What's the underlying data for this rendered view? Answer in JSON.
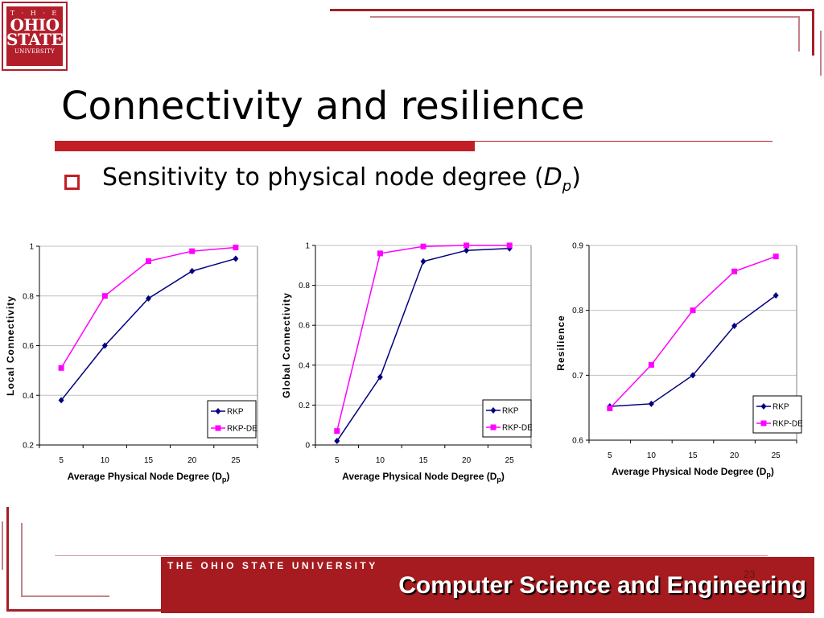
{
  "logo": {
    "line1": "T · H · E",
    "line2": "OHIO",
    "line3": "STATE",
    "line4": "UNIVERSITY"
  },
  "title": "Connectivity and resilience",
  "bullet": {
    "text": "Sensitivity to physical node degree (",
    "var": "D",
    "sub": "p",
    "close": ")"
  },
  "footer": {
    "university": "THE OHIO STATE UNIVERSITY",
    "department": "Computer Science and Engineering",
    "page": "23"
  },
  "colors": {
    "accent": "#c21e25",
    "rkp": "#000080",
    "rkpde": "#ff00ff",
    "footer_bg": "#a51b1f"
  },
  "chart_data": [
    {
      "type": "line",
      "x": [
        5,
        10,
        15,
        20,
        25
      ],
      "xlabel": "Average Physical Node Degree (D",
      "xlabel_sub": "p",
      "xlabel_close": ")",
      "ylabel": "Local Connectivity",
      "ylim": [
        0.2,
        1
      ],
      "yticks": [
        0.2,
        0.4,
        0.6,
        0.8,
        1
      ],
      "ytick_labels": [
        "0.2",
        "0.4",
        "0.6",
        "0.8",
        "1"
      ],
      "grid": true,
      "legend": "bottom-right",
      "series": [
        {
          "name": "RKP",
          "values": [
            0.38,
            0.6,
            0.79,
            0.9,
            0.95
          ]
        },
        {
          "name": "RKP-DE",
          "values": [
            0.51,
            0.8,
            0.94,
            0.98,
            0.995
          ]
        }
      ]
    },
    {
      "type": "line",
      "x": [
        5,
        10,
        15,
        20,
        25
      ],
      "xlabel": "Average Physical Node Degree (D",
      "xlabel_sub": "p",
      "xlabel_close": ")",
      "ylabel": "Global Connectivity",
      "ylim": [
        0,
        1
      ],
      "yticks": [
        0,
        0.2,
        0.4,
        0.6,
        0.8,
        1
      ],
      "ytick_labels": [
        "0",
        "0.2",
        "0.4",
        "0.6",
        "0.8",
        "1"
      ],
      "grid": true,
      "legend": "bottom-right",
      "series": [
        {
          "name": "RKP",
          "values": [
            0.02,
            0.34,
            0.92,
            0.975,
            0.985
          ]
        },
        {
          "name": "RKP-DE",
          "values": [
            0.07,
            0.96,
            0.995,
            1.0,
            1.0
          ]
        }
      ]
    },
    {
      "type": "line",
      "x": [
        5,
        10,
        15,
        20,
        25
      ],
      "xlabel": "Average Physical Node Degree (D",
      "xlabel_sub": "p",
      "xlabel_close": ")",
      "ylabel": "Resilience",
      "ylim": [
        0.6,
        0.9
      ],
      "yticks": [
        0.6,
        0.7,
        0.8,
        0.9
      ],
      "ytick_labels": [
        "0.6",
        "0.7",
        "0.8",
        "0.9"
      ],
      "grid": true,
      "legend": "bottom-right",
      "series": [
        {
          "name": "RKP",
          "values": [
            0.652,
            0.656,
            0.7,
            0.776,
            0.823
          ]
        },
        {
          "name": "RKP-DE",
          "values": [
            0.649,
            0.716,
            0.8,
            0.86,
            0.883
          ]
        }
      ]
    }
  ]
}
